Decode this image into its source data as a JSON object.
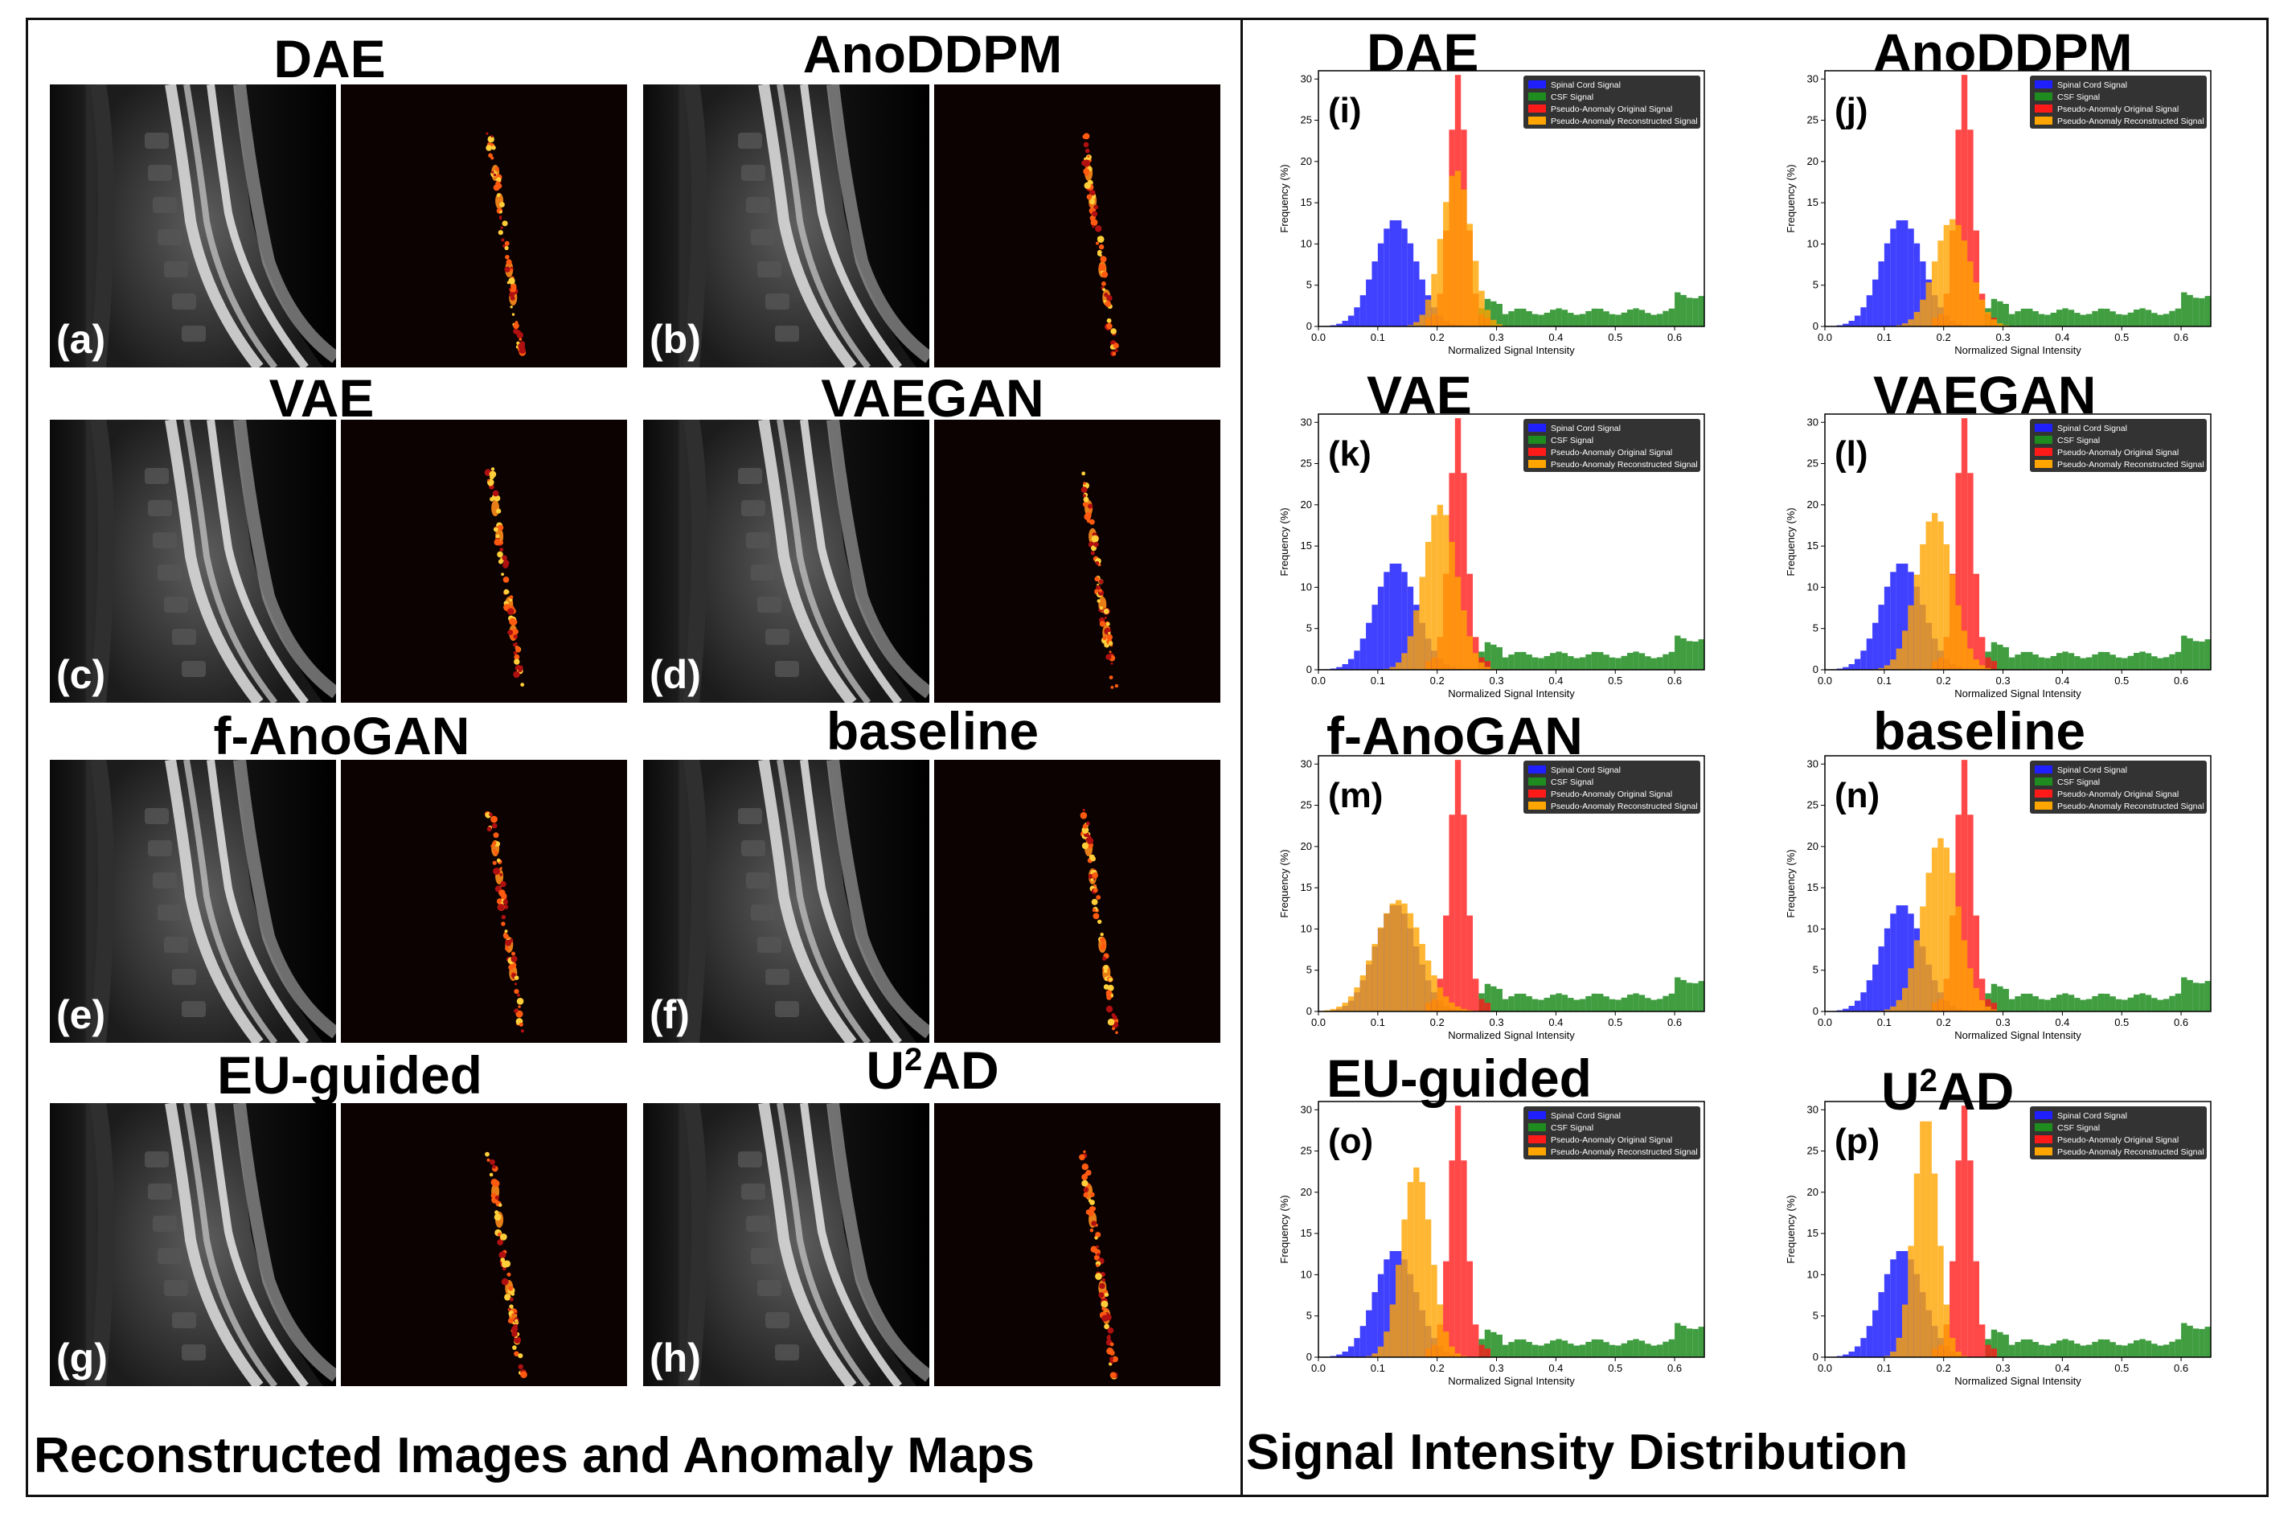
{
  "left_section": {
    "caption": "Reconstructed Images and Anomaly Maps",
    "panels": [
      {
        "title": "DAE",
        "label": "(a)"
      },
      {
        "title": "AnoDDPM",
        "label": "(b)"
      },
      {
        "title": "VAE",
        "label": "(c)"
      },
      {
        "title": "VAEGAN",
        "label": "(d)"
      },
      {
        "title": "f-AnoGAN",
        "label": "(e)"
      },
      {
        "title": "baseline",
        "label": "(f)"
      },
      {
        "title": "EU-guided",
        "label": "(g)"
      },
      {
        "title_base": "U",
        "title_sup": "2",
        "title_rest": "AD",
        "label": "(h)"
      }
    ]
  },
  "right_section": {
    "caption": "Signal Intensity Distribution"
  },
  "colors": {
    "spinal_cord": "#1f1fff",
    "csf": "#1e8c1e",
    "original": "#ff1a1a",
    "reconstructed": "#ffa500",
    "legend_bg": "#333333"
  },
  "chart_data": [
    {
      "type": "bar",
      "panel": "(i)",
      "title": "DAE",
      "xlabel": "Normalized Signal Intensity",
      "ylabel": "Frequency (%)",
      "xlim": [
        0,
        0.65
      ],
      "ylim": [
        0,
        31
      ],
      "xticks": [
        "0.0",
        "0.1",
        "0.2",
        "0.3",
        "0.4",
        "0.5",
        "0.6"
      ],
      "yticks": [
        "0",
        "5",
        "10",
        "15",
        "20",
        "25",
        "30"
      ],
      "legend": [
        "Spinal Cord Signal",
        "CSF Signal",
        "Pseudo-Anomaly Original Signal",
        "Pseudo-Anomaly Reconstructed Signal"
      ],
      "recon_peak": 0.232,
      "recon_height": 19,
      "recon_width": 0.025
    },
    {
      "type": "bar",
      "panel": "(j)",
      "title": "AnoDDPM",
      "xlabel": "Normalized Signal Intensity",
      "ylabel": "Frequency (%)",
      "xlim": [
        0,
        0.65
      ],
      "ylim": [
        0,
        31
      ],
      "xticks": [
        "0.0",
        "0.1",
        "0.2",
        "0.3",
        "0.4",
        "0.5",
        "0.6"
      ],
      "yticks": [
        "0",
        "5",
        "10",
        "15",
        "20",
        "25",
        "30"
      ],
      "legend": [
        "Spinal Cord Signal",
        "CSF Signal",
        "Pseudo-Anomaly Original Signal",
        "Pseudo-Anomaly Reconstructed Signal"
      ],
      "recon_peak": 0.215,
      "recon_height": 13,
      "recon_width": 0.03
    },
    {
      "type": "bar",
      "panel": "(k)",
      "title": "VAE",
      "xlabel": "Normalized Signal Intensity",
      "ylabel": "Frequency (%)",
      "xlim": [
        0,
        0.65
      ],
      "ylim": [
        0,
        31
      ],
      "xticks": [
        "0.0",
        "0.1",
        "0.2",
        "0.3",
        "0.4",
        "0.5",
        "0.6"
      ],
      "yticks": [
        "0",
        "5",
        "10",
        "15",
        "20",
        "25",
        "30"
      ],
      "legend": [
        "Spinal Cord Signal",
        "CSF Signal",
        "Pseudo-Anomaly Original Signal",
        "Pseudo-Anomaly Reconstructed Signal"
      ],
      "recon_peak": 0.205,
      "recon_height": 20,
      "recon_width": 0.028
    },
    {
      "type": "bar",
      "panel": "(l)",
      "title": "VAEGAN",
      "xlabel": "Normalized Signal Intensity",
      "ylabel": "Frequency (%)",
      "xlim": [
        0,
        0.65
      ],
      "ylim": [
        0,
        31
      ],
      "xticks": [
        "0.0",
        "0.1",
        "0.2",
        "0.3",
        "0.4",
        "0.5",
        "0.6"
      ],
      "yticks": [
        "0",
        "5",
        "10",
        "15",
        "20",
        "25",
        "30"
      ],
      "legend": [
        "Spinal Cord Signal",
        "CSF Signal",
        "Pseudo-Anomaly Original Signal",
        "Pseudo-Anomaly Reconstructed Signal"
      ],
      "recon_peak": 0.185,
      "recon_height": 19,
      "recon_width": 0.03
    },
    {
      "type": "bar",
      "panel": "(m)",
      "title": "f-AnoGAN",
      "xlabel": "Normalized Signal Intensity",
      "ylabel": "Frequency (%)",
      "xlim": [
        0,
        0.65
      ],
      "ylim": [
        0,
        31
      ],
      "xticks": [
        "0.0",
        "0.1",
        "0.2",
        "0.3",
        "0.4",
        "0.5",
        "0.6"
      ],
      "yticks": [
        "0",
        "5",
        "10",
        "15",
        "20",
        "25",
        "30"
      ],
      "legend": [
        "Spinal Cord Signal",
        "CSF Signal",
        "Pseudo-Anomaly Original Signal",
        "Pseudo-Anomaly Reconstructed Signal"
      ],
      "recon_peak": 0.135,
      "recon_height": 13.5,
      "recon_width": 0.04
    },
    {
      "type": "bar",
      "panel": "(n)",
      "title": "baseline",
      "xlabel": "Normalized Signal Intensity",
      "ylabel": "Frequency (%)",
      "xlim": [
        0,
        0.65
      ],
      "ylim": [
        0,
        31
      ],
      "xticks": [
        "0.0",
        "0.1",
        "0.2",
        "0.3",
        "0.4",
        "0.5",
        "0.6"
      ],
      "yticks": [
        "0",
        "5",
        "10",
        "15",
        "20",
        "25",
        "30"
      ],
      "legend": [
        "Spinal Cord Signal",
        "CSF Signal",
        "Pseudo-Anomaly Original Signal",
        "Pseudo-Anomaly Reconstructed Signal"
      ],
      "recon_peak": 0.195,
      "recon_height": 21,
      "recon_width": 0.03
    },
    {
      "type": "bar",
      "panel": "(o)",
      "title": "EU-guided",
      "xlabel": "Normalized Signal Intensity",
      "ylabel": "Frequency (%)",
      "xlim": [
        0,
        0.65
      ],
      "ylim": [
        0,
        31
      ],
      "xticks": [
        "0.0",
        "0.1",
        "0.2",
        "0.3",
        "0.4",
        "0.5",
        "0.6"
      ],
      "yticks": [
        "0",
        "5",
        "10",
        "15",
        "20",
        "25",
        "30"
      ],
      "legend": [
        "Spinal Cord Signal",
        "CSF Signal",
        "Pseudo-Anomaly Original Signal",
        "Pseudo-Anomaly Reconstructed Signal"
      ],
      "recon_peak": 0.165,
      "recon_height": 23,
      "recon_width": 0.025
    },
    {
      "type": "bar",
      "panel": "(p)",
      "title_base": "U",
      "title_sup": "2",
      "title_rest": "AD",
      "xlabel": "Normalized Signal Intensity",
      "ylabel": "Frequency (%)",
      "xlim": [
        0,
        0.65
      ],
      "ylim": [
        0,
        31
      ],
      "xticks": [
        "0.0",
        "0.1",
        "0.2",
        "0.3",
        "0.4",
        "0.5",
        "0.6"
      ],
      "yticks": [
        "0",
        "5",
        "10",
        "15",
        "20",
        "25",
        "30"
      ],
      "legend": [
        "Spinal Cord Signal",
        "CSF Signal",
        "Pseudo-Anomaly Original Signal",
        "Pseudo-Anomaly Reconstructed Signal"
      ],
      "recon_peak": 0.17,
      "recon_height": 29.5,
      "recon_width": 0.02
    }
  ]
}
